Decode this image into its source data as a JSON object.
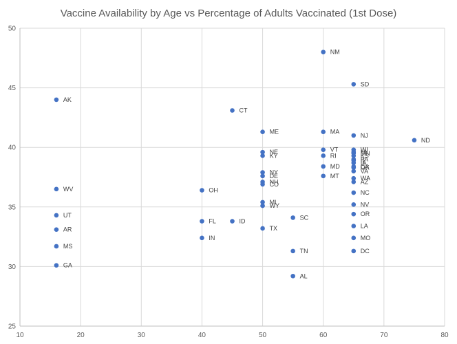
{
  "chart_data": {
    "type": "scatter",
    "title": "Vaccine Availability by Age vs Percentage of Adults Vaccinated (1st Dose)",
    "xlabel": "",
    "ylabel": "",
    "xlim": [
      10,
      80
    ],
    "ylim": [
      25,
      50
    ],
    "xticks": [
      10,
      20,
      30,
      40,
      50,
      60,
      70,
      80
    ],
    "yticks": [
      25,
      30,
      35,
      40,
      45,
      50
    ],
    "grid": true,
    "marker_color": "#4472C4",
    "points": [
      {
        "label": "AK",
        "x": 16,
        "y": 44.0
      },
      {
        "label": "WV",
        "x": 16,
        "y": 36.5
      },
      {
        "label": "UT",
        "x": 16,
        "y": 34.3
      },
      {
        "label": "AR",
        "x": 16,
        "y": 33.1
      },
      {
        "label": "MS",
        "x": 16,
        "y": 31.7
      },
      {
        "label": "GA",
        "x": 16,
        "y": 30.1
      },
      {
        "label": "OH",
        "x": 40,
        "y": 36.4
      },
      {
        "label": "FL",
        "x": 40,
        "y": 33.8
      },
      {
        "label": "IN",
        "x": 40,
        "y": 32.4
      },
      {
        "label": "CT",
        "x": 45,
        "y": 43.1
      },
      {
        "label": "ID",
        "x": 45,
        "y": 33.8
      },
      {
        "label": "ME",
        "x": 50,
        "y": 41.3
      },
      {
        "label": "NE",
        "x": 50,
        "y": 39.6
      },
      {
        "label": "KY",
        "x": 50,
        "y": 39.3
      },
      {
        "label": "NY",
        "x": 50,
        "y": 37.9
      },
      {
        "label": "DE",
        "x": 50,
        "y": 37.6
      },
      {
        "label": "NH",
        "x": 50,
        "y": 37.1
      },
      {
        "label": "CO",
        "x": 50,
        "y": 36.9
      },
      {
        "label": "MI",
        "x": 50,
        "y": 35.4
      },
      {
        "label": "WY",
        "x": 50,
        "y": 35.1
      },
      {
        "label": "TX",
        "x": 50,
        "y": 33.2
      },
      {
        "label": "SC",
        "x": 55,
        "y": 34.1
      },
      {
        "label": "TN",
        "x": 55,
        "y": 31.3
      },
      {
        "label": "AL",
        "x": 55,
        "y": 29.2
      },
      {
        "label": "NM",
        "x": 60,
        "y": 48.0
      },
      {
        "label": "MA",
        "x": 60,
        "y": 41.3
      },
      {
        "label": "VT",
        "x": 60,
        "y": 39.8
      },
      {
        "label": "RI",
        "x": 60,
        "y": 39.3
      },
      {
        "label": "MD",
        "x": 60,
        "y": 38.4
      },
      {
        "label": "MT",
        "x": 60,
        "y": 37.6
      },
      {
        "label": "SD",
        "x": 65,
        "y": 45.3
      },
      {
        "label": "NJ",
        "x": 65,
        "y": 41.0
      },
      {
        "label": "WI",
        "x": 65,
        "y": 39.8
      },
      {
        "label": "HI",
        "x": 65,
        "y": 39.6
      },
      {
        "label": "MN",
        "x": 65,
        "y": 39.5
      },
      {
        "label": "KS",
        "x": 65,
        "y": 39.3
      },
      {
        "label": "PA",
        "x": 65,
        "y": 39.0
      },
      {
        "label": "IL",
        "x": 65,
        "y": 38.9
      },
      {
        "label": "IA",
        "x": 65,
        "y": 38.7
      },
      {
        "label": "CA",
        "x": 65,
        "y": 38.4
      },
      {
        "label": "OK",
        "x": 65,
        "y": 38.3
      },
      {
        "label": "VA",
        "x": 65,
        "y": 38.0
      },
      {
        "label": "WA",
        "x": 65,
        "y": 37.4
      },
      {
        "label": "AZ",
        "x": 65,
        "y": 37.1
      },
      {
        "label": "NC",
        "x": 65,
        "y": 36.2
      },
      {
        "label": "NV",
        "x": 65,
        "y": 35.2
      },
      {
        "label": "OR",
        "x": 65,
        "y": 34.4
      },
      {
        "label": "LA",
        "x": 65,
        "y": 33.4
      },
      {
        "label": "MO",
        "x": 65,
        "y": 32.4
      },
      {
        "label": "DC",
        "x": 65,
        "y": 31.3
      },
      {
        "label": "ND",
        "x": 75,
        "y": 40.6
      }
    ]
  }
}
